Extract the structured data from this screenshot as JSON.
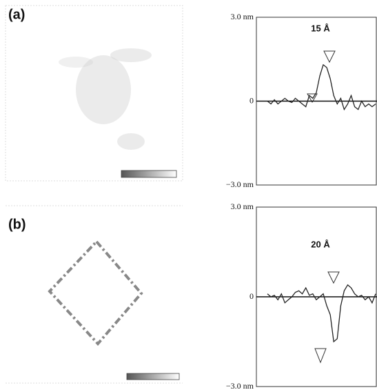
{
  "panels": [
    {
      "label": "(a)",
      "annotation": "15 Å",
      "ylim": [
        -3,
        3
      ],
      "yticks": [
        {
          "value": 3,
          "label": "3.0 nm"
        },
        0,
        {
          "value": -3,
          "label": "−3.0 nm"
        }
      ],
      "profile": [
        0,
        -0.1,
        0.05,
        -0.1,
        0,
        0.1,
        0,
        -0.05,
        0.1,
        0,
        -0.1,
        -0.2,
        0.2,
        0.1,
        0.3,
        0.9,
        1.3,
        1.2,
        0.8,
        0.2,
        -0.1,
        0.1,
        -0.3,
        -0.1,
        0.2,
        -0.2,
        -0.3,
        0,
        -0.2,
        -0.1,
        -0.2,
        -0.1
      ]
    },
    {
      "label": "(b)",
      "annotation": "20 Å",
      "ylim": [
        -3,
        3
      ],
      "yticks": [
        {
          "value": 3,
          "label": "3.0 nm"
        },
        0,
        {
          "value": -3,
          "label": "−3.0 nm"
        }
      ],
      "profile": [
        0.1,
        0,
        0.05,
        -0.1,
        0.1,
        -0.2,
        -0.1,
        0,
        0.15,
        0.2,
        0.1,
        0.3,
        0.05,
        0.1,
        -0.1,
        0,
        0.1,
        -0.3,
        -0.6,
        -1.5,
        -1.4,
        -0.3,
        0.2,
        0.4,
        0.3,
        0.1,
        0,
        0.05,
        -0.1,
        0,
        -0.2,
        0.1
      ]
    }
  ]
}
